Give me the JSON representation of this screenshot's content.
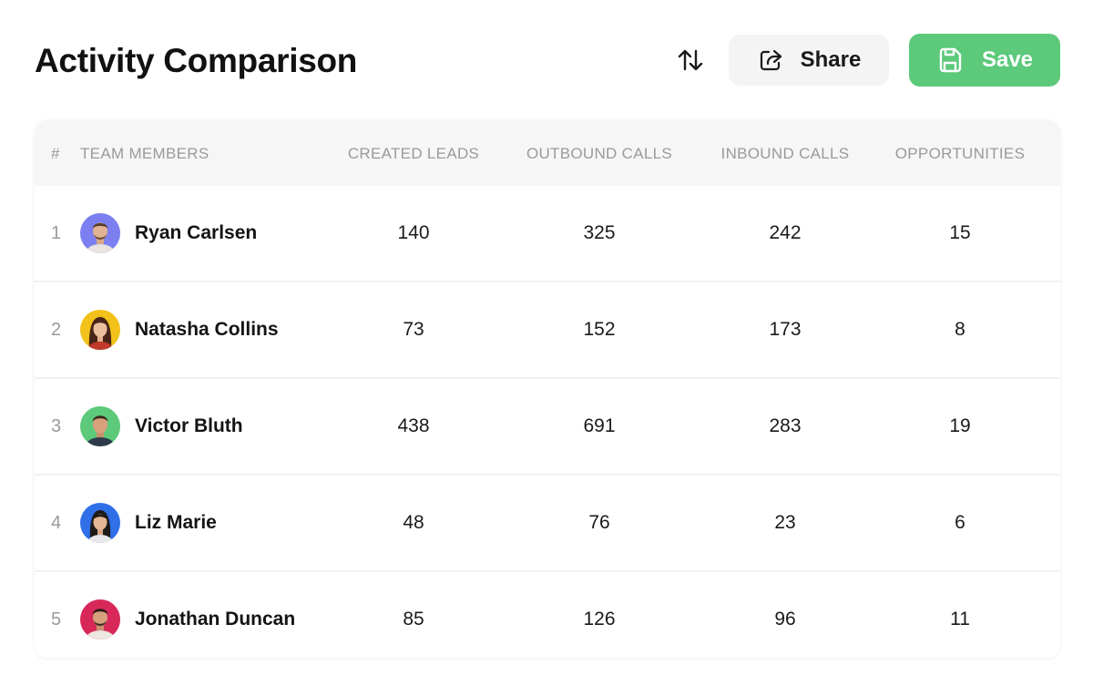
{
  "header": {
    "title": "Activity Comparison",
    "share_label": "Share",
    "save_label": "Save",
    "sort_icon": "sort-arrows-icon",
    "share_icon": "share-icon",
    "save_icon": "save-icon"
  },
  "colors": {
    "save_bg": "#5cc97b",
    "share_bg": "#f4f4f5",
    "header_bg": "#f6f6f7"
  },
  "table": {
    "columns": [
      "#",
      "TEAM MEMBERS",
      "CREATED LEADS",
      "OUTBOUND CALLS",
      "INBOUND CALLS",
      "OPPORTUNITIES"
    ],
    "rows": [
      {
        "rank": "1",
        "name": "Ryan Carlsen",
        "avatar_color": "#7b7ff0",
        "created_leads": "140",
        "outbound_calls": "325",
        "inbound_calls": "242",
        "opportunities": "15"
      },
      {
        "rank": "2",
        "name": "Natasha Collins",
        "avatar_color": "#f2c21a",
        "created_leads": "73",
        "outbound_calls": "152",
        "inbound_calls": "173",
        "opportunities": "8"
      },
      {
        "rank": "3",
        "name": "Victor Bluth",
        "avatar_color": "#5cc97b",
        "created_leads": "438",
        "outbound_calls": "691",
        "inbound_calls": "283",
        "opportunities": "19"
      },
      {
        "rank": "4",
        "name": "Liz Marie",
        "avatar_color": "#2f6fe8",
        "created_leads": "48",
        "outbound_calls": "76",
        "inbound_calls": "23",
        "opportunities": "6"
      },
      {
        "rank": "5",
        "name": "Jonathan Duncan",
        "avatar_color": "#d8285a",
        "created_leads": "85",
        "outbound_calls": "126",
        "inbound_calls": "96",
        "opportunities": "11"
      }
    ]
  }
}
